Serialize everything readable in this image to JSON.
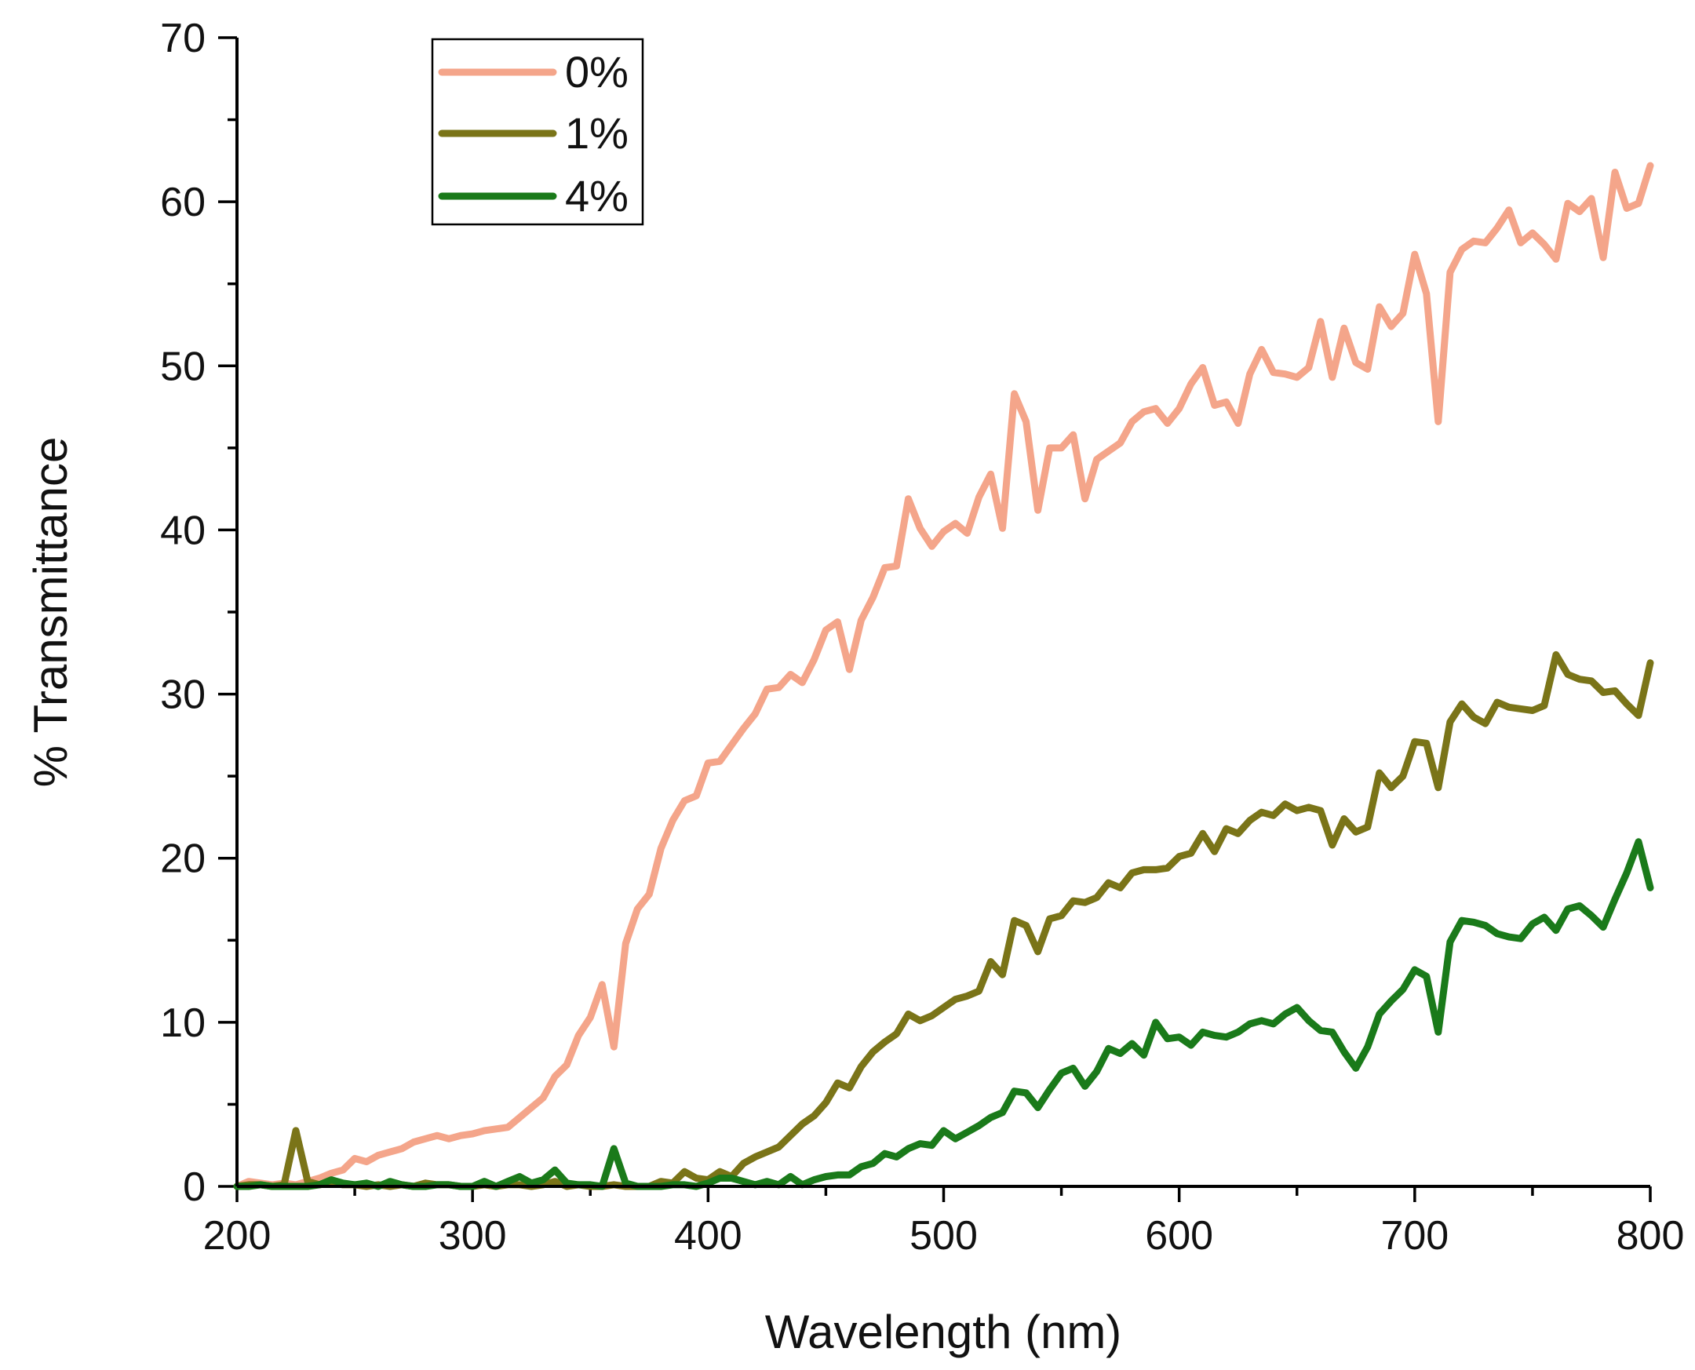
{
  "chart_data": {
    "type": "line",
    "title": "",
    "xlabel": "Wavelength (nm)",
    "ylabel": "% Transmittance",
    "xlim": [
      200,
      800
    ],
    "ylim": [
      0,
      70
    ],
    "xticks": [
      200,
      300,
      400,
      500,
      600,
      700,
      800
    ],
    "yticks": [
      0,
      10,
      20,
      30,
      40,
      50,
      60,
      70
    ],
    "xtick_labels": [
      "200",
      "300",
      "400",
      "500",
      "600",
      "700",
      "800"
    ],
    "ytick_labels": [
      "0",
      "10",
      "20",
      "30",
      "40",
      "50",
      "60",
      "70"
    ],
    "grid": false,
    "legend_position": "top-left",
    "series": [
      {
        "name": "0%",
        "color": "#f4a58a",
        "x": [
          200,
          205,
          210,
          215,
          220,
          225,
          230,
          235,
          240,
          245,
          250,
          255,
          260,
          265,
          270,
          275,
          280,
          285,
          290,
          295,
          300,
          305,
          310,
          315,
          320,
          325,
          330,
          335,
          340,
          345,
          350,
          355,
          360,
          365,
          370,
          375,
          380,
          385,
          390,
          395,
          400,
          405,
          410,
          415,
          420,
          425,
          430,
          435,
          440,
          445,
          450,
          455,
          460,
          465,
          470,
          475,
          480,
          485,
          490,
          495,
          500,
          505,
          510,
          515,
          520,
          525,
          530,
          535,
          540,
          545,
          550,
          555,
          560,
          565,
          570,
          575,
          580,
          585,
          590,
          595,
          600,
          605,
          610,
          615,
          620,
          625,
          630,
          635,
          640,
          645,
          650,
          655,
          660,
          665,
          670,
          675,
          680,
          685,
          690,
          695,
          700,
          705,
          710,
          715,
          720,
          725,
          730,
          735,
          740,
          745,
          750,
          755,
          760,
          765,
          770,
          775,
          780,
          785,
          790,
          795,
          800
        ],
        "y": [
          0,
          0.3,
          0.2,
          0.1,
          0.2,
          0.1,
          0.3,
          0.5,
          0.8,
          1.0,
          1.7,
          1.5,
          1.9,
          2.1,
          2.3,
          2.7,
          2.9,
          3.1,
          2.9,
          3.1,
          3.2,
          3.4,
          3.5,
          3.6,
          4.2,
          4.8,
          5.4,
          6.7,
          7.4,
          9.2,
          10.3,
          12.3,
          8.5,
          14.8,
          16.9,
          17.8,
          20.6,
          22.3,
          23.5,
          23.8,
          25.8,
          25.9,
          26.9,
          27.9,
          28.8,
          30.3,
          30.4,
          31.2,
          30.7,
          32.1,
          33.9,
          34.4,
          31.5,
          34.5,
          35.9,
          37.7,
          37.8,
          41.9,
          40.1,
          39.0,
          39.9,
          40.4,
          39.8,
          42.0,
          43.4,
          40.1,
          48.3,
          46.6,
          41.2,
          45.0,
          45.0,
          45.8,
          41.9,
          44.3,
          44.8,
          45.3,
          46.6,
          47.2,
          47.4,
          46.5,
          47.4,
          48.9,
          49.9,
          47.6,
          47.8,
          46.5,
          49.5,
          51.0,
          49.6,
          49.5,
          49.3,
          49.9,
          52.7,
          49.3,
          52.3,
          50.2,
          49.8,
          53.6,
          52.4,
          53.2,
          56.8,
          54.4,
          46.6,
          55.7,
          57.1,
          57.6,
          57.5,
          58.4,
          59.5,
          57.5,
          58.1,
          57.4,
          56.5,
          59.9,
          59.4,
          60.2,
          56.6,
          61.8,
          59.6,
          59.9,
          62.2
        ]
      },
      {
        "name": "1%",
        "color": "#7a7418",
        "x": [
          200,
          205,
          210,
          215,
          220,
          225,
          230,
          235,
          240,
          245,
          250,
          255,
          260,
          265,
          270,
          275,
          280,
          285,
          290,
          295,
          300,
          305,
          310,
          315,
          320,
          325,
          330,
          335,
          340,
          345,
          350,
          355,
          360,
          365,
          370,
          375,
          380,
          385,
          390,
          395,
          400,
          405,
          410,
          415,
          420,
          425,
          430,
          435,
          440,
          445,
          450,
          455,
          460,
          465,
          470,
          475,
          480,
          485,
          490,
          495,
          500,
          505,
          510,
          515,
          520,
          525,
          530,
          535,
          540,
          545,
          550,
          555,
          560,
          565,
          570,
          575,
          580,
          585,
          590,
          595,
          600,
          605,
          610,
          615,
          620,
          625,
          630,
          635,
          640,
          645,
          650,
          655,
          660,
          665,
          670,
          675,
          680,
          685,
          690,
          695,
          700,
          705,
          710,
          715,
          720,
          725,
          730,
          735,
          740,
          745,
          750,
          755,
          760,
          765,
          770,
          775,
          780,
          785,
          790,
          795,
          800
        ],
        "y": [
          0,
          0.1,
          0.1,
          0,
          0.1,
          3.4,
          0.3,
          0.1,
          0.2,
          0.1,
          0.1,
          0,
          0.1,
          0,
          0.1,
          0,
          0.2,
          0.1,
          0.1,
          0,
          0,
          0.1,
          0,
          0.1,
          0.1,
          0,
          0.1,
          0.3,
          0,
          0.1,
          0,
          0,
          0.1,
          0,
          0,
          0,
          0.3,
          0.2,
          0.9,
          0.5,
          0.4,
          0.9,
          0.6,
          1.4,
          1.8,
          2.1,
          2.4,
          3.1,
          3.8,
          4.3,
          5.1,
          6.3,
          6.0,
          7.3,
          8.2,
          8.8,
          9.3,
          10.5,
          10.1,
          10.4,
          10.9,
          11.4,
          11.6,
          11.9,
          13.7,
          12.9,
          16.2,
          15.9,
          14.3,
          16.3,
          16.5,
          17.4,
          17.3,
          17.6,
          18.5,
          18.2,
          19.1,
          19.3,
          19.3,
          19.4,
          20.1,
          20.3,
          21.5,
          20.4,
          21.8,
          21.5,
          22.3,
          22.8,
          22.6,
          23.3,
          22.9,
          23.1,
          22.9,
          20.8,
          22.4,
          21.6,
          21.9,
          25.2,
          24.3,
          25.0,
          27.1,
          27.0,
          24.3,
          28.3,
          29.4,
          28.6,
          28.2,
          29.5,
          29.2,
          29.1,
          29.0,
          29.3,
          32.4,
          31.2,
          30.9,
          30.8,
          30.1,
          30.2,
          29.4,
          28.7,
          31.9
        ]
      },
      {
        "name": "4%",
        "color": "#1a7a1a",
        "x": [
          200,
          205,
          210,
          215,
          220,
          225,
          230,
          235,
          240,
          245,
          250,
          255,
          260,
          265,
          270,
          275,
          280,
          285,
          290,
          295,
          300,
          305,
          310,
          315,
          320,
          325,
          330,
          335,
          340,
          345,
          350,
          355,
          360,
          365,
          370,
          375,
          380,
          385,
          390,
          395,
          400,
          405,
          410,
          415,
          420,
          425,
          430,
          435,
          440,
          445,
          450,
          455,
          460,
          465,
          470,
          475,
          480,
          485,
          490,
          495,
          500,
          505,
          510,
          515,
          520,
          525,
          530,
          535,
          540,
          545,
          550,
          555,
          560,
          565,
          570,
          575,
          580,
          585,
          590,
          595,
          600,
          605,
          610,
          615,
          620,
          625,
          630,
          635,
          640,
          645,
          650,
          655,
          660,
          665,
          670,
          675,
          680,
          685,
          690,
          695,
          700,
          705,
          710,
          715,
          720,
          725,
          730,
          735,
          740,
          745,
          750,
          755,
          760,
          765,
          770,
          775,
          780,
          785,
          790,
          795,
          800
        ],
        "y": [
          0,
          0,
          0.1,
          0,
          0,
          0,
          0,
          0.1,
          0.4,
          0.2,
          0.1,
          0.2,
          0,
          0.3,
          0.1,
          0,
          0,
          0.1,
          0.1,
          0,
          0,
          0.3,
          0,
          0.3,
          0.6,
          0.2,
          0.4,
          1.0,
          0.2,
          0.1,
          0.1,
          0,
          2.3,
          0.2,
          0,
          0,
          0,
          0.1,
          0.1,
          0,
          0.2,
          0.5,
          0.5,
          0.3,
          0.1,
          0.3,
          0.1,
          0.6,
          0.1,
          0.4,
          0.6,
          0.7,
          0.7,
          1.2,
          1.4,
          2.0,
          1.8,
          2.3,
          2.6,
          2.5,
          3.4,
          2.9,
          3.3,
          3.7,
          4.2,
          4.5,
          5.8,
          5.7,
          4.8,
          5.9,
          6.9,
          7.2,
          6.1,
          7.0,
          8.4,
          8.1,
          8.7,
          8.0,
          10.0,
          9.0,
          9.1,
          8.6,
          9.4,
          9.2,
          9.1,
          9.4,
          9.9,
          10.1,
          9.9,
          10.5,
          10.9,
          10.1,
          9.5,
          9.4,
          8.2,
          7.2,
          8.5,
          10.5,
          11.3,
          12.0,
          13.2,
          12.8,
          9.4,
          14.9,
          16.2,
          16.1,
          15.9,
          15.4,
          15.2,
          15.1,
          16.0,
          16.4,
          15.6,
          16.9,
          17.1,
          16.5,
          15.8,
          17.5,
          19.1,
          21.0,
          18.2
        ]
      }
    ]
  }
}
